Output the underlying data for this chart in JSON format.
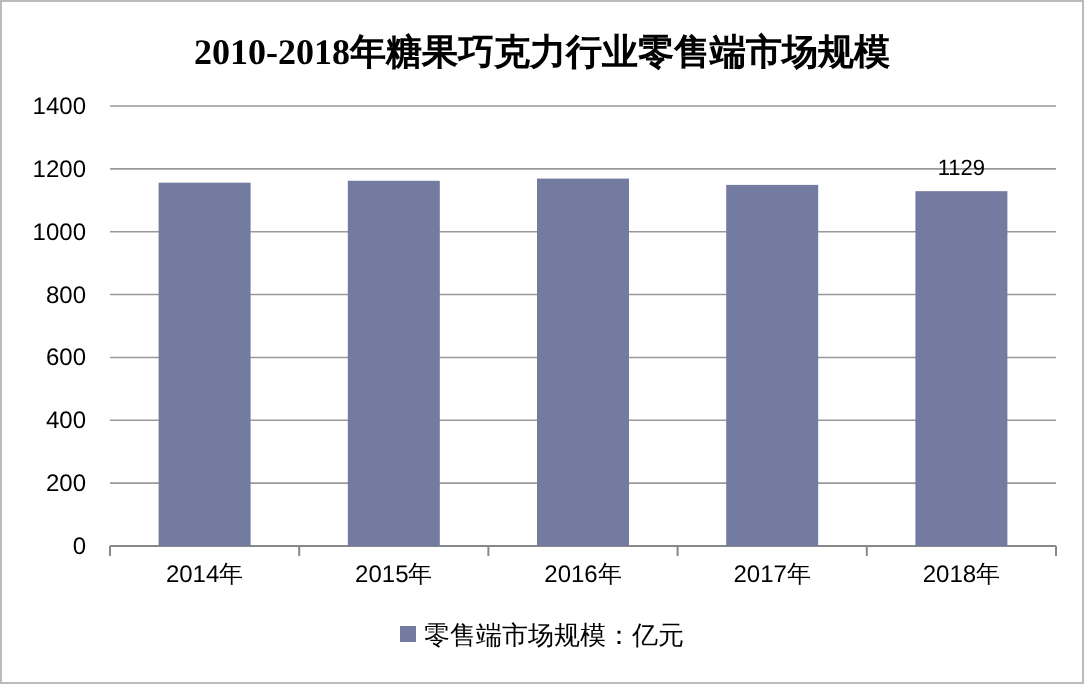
{
  "chart_data": {
    "type": "bar",
    "title": "2010-2018年糖果巧克力行业零售端市场规模",
    "categories": [
      "2014年",
      "2015年",
      "2016年",
      "2017年",
      "2018年"
    ],
    "series": [
      {
        "name": "零售端市场规模：亿元",
        "color": "#737ca0",
        "values": [
          1156,
          1162,
          1169,
          1149,
          1129
        ]
      }
    ],
    "value_labels": [
      null,
      null,
      null,
      null,
      "1129"
    ],
    "ylim": [
      0,
      1400
    ],
    "yticks": [
      0,
      200,
      400,
      600,
      800,
      1000,
      1200,
      1400
    ],
    "grid": "y",
    "legend": "bottom"
  }
}
